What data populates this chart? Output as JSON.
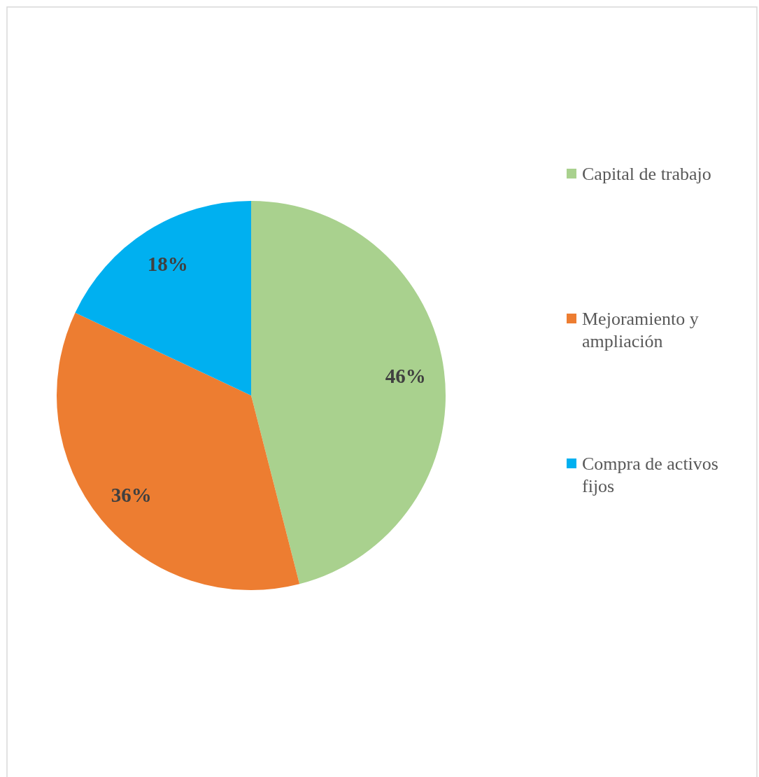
{
  "chart_data": {
    "type": "pie",
    "categories": [
      "Capital de trabajo",
      "Mejoramiento y ampliación",
      "Compra de activos fijos"
    ],
    "values": [
      46,
      36,
      18
    ],
    "colors": [
      "#a9d18e",
      "#ed7d31",
      "#00b0f0"
    ],
    "value_labels": [
      "46%",
      "36%",
      "18%"
    ],
    "legend": "right"
  }
}
